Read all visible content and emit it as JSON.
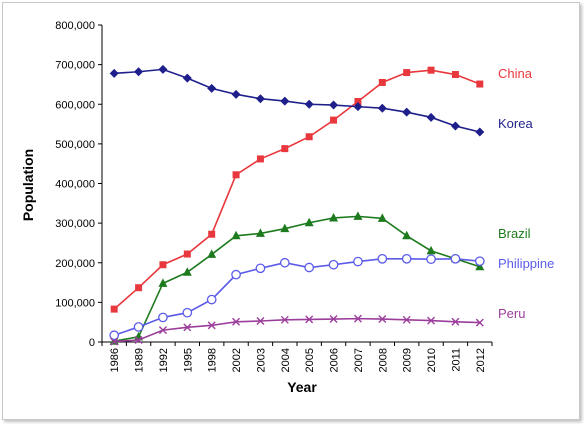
{
  "chart_data": {
    "type": "line",
    "xlabel": "Year",
    "ylabel": "Population",
    "ylim": [
      0,
      800000
    ],
    "y_ticks": [
      "0",
      "100,000",
      "200,000",
      "300,000",
      "400,000",
      "500,000",
      "600,000",
      "700,000",
      "800,000"
    ],
    "categories": [
      "1986",
      "1989",
      "1992",
      "1995",
      "1998",
      "2002",
      "2003",
      "2004",
      "2005",
      "2006",
      "2007",
      "2008",
      "2009",
      "2010",
      "2011",
      "2012"
    ],
    "grid": false,
    "legend": "right (labels beside line ends)",
    "series": [
      {
        "name": "China",
        "color": "#e8383d",
        "marker": "square",
        "values": [
          83000,
          137000,
          195000,
          222000,
          272000,
          422000,
          462000,
          488000,
          518000,
          560000,
          607000,
          655000,
          680000,
          686000,
          675000,
          651000
        ]
      },
      {
        "name": "Korea",
        "color": "#1f1f8c",
        "marker": "diamond",
        "values": [
          678000,
          682000,
          688000,
          666000,
          640000,
          625000,
          614000,
          608000,
          600000,
          598000,
          594000,
          590000,
          580000,
          567000,
          545000,
          530000
        ]
      },
      {
        "name": "Brazil",
        "color": "#1e7a1e",
        "marker": "triangle",
        "values": [
          2000,
          13000,
          148000,
          176000,
          221000,
          268000,
          274000,
          286000,
          301000,
          313000,
          317000,
          312000,
          268000,
          230000,
          210000,
          190000
        ]
      },
      {
        "name": "Philippine",
        "color": "#5b5be8",
        "marker": "open-circle",
        "values": [
          17000,
          38000,
          62000,
          74000,
          107000,
          170000,
          186000,
          200000,
          188000,
          195000,
          203000,
          210000,
          210000,
          209000,
          210000,
          204000
        ]
      },
      {
        "name": "Peru",
        "color": "#9b3d9b",
        "marker": "cross",
        "values": [
          1000,
          5000,
          30000,
          37000,
          42000,
          51000,
          53000,
          56000,
          57000,
          58000,
          59000,
          58000,
          56000,
          54000,
          51000,
          49000
        ]
      }
    ]
  }
}
